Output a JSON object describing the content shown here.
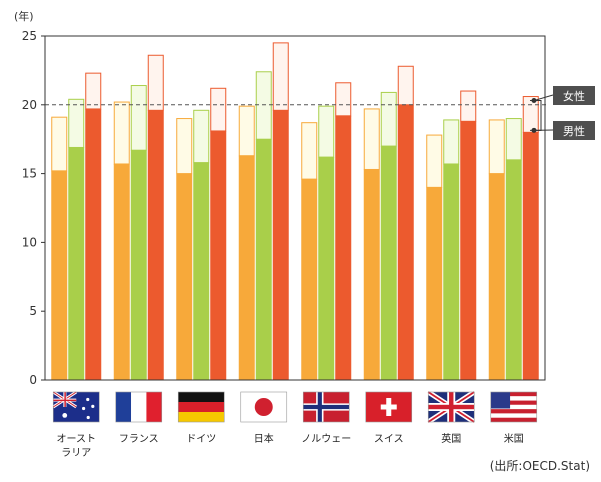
{
  "chart_data": {
    "type": "bar",
    "unit_label": "(年)",
    "ylim": [
      0,
      25
    ],
    "yticks": [
      0,
      5,
      10,
      15,
      20,
      25
    ],
    "reference_line": 20,
    "categories": [
      {
        "label_lines": [
          "オースト",
          "ラリア"
        ],
        "flag": "australia-flag"
      },
      {
        "label_lines": [
          "フランス"
        ],
        "flag": "france-flag"
      },
      {
        "label_lines": [
          "ドイツ"
        ],
        "flag": "germany-flag"
      },
      {
        "label_lines": [
          "日本"
        ],
        "flag": "japan-flag"
      },
      {
        "label_lines": [
          "ノルウェー"
        ],
        "flag": "norway-flag"
      },
      {
        "label_lines": [
          "スイス"
        ],
        "flag": "switzerland-flag"
      },
      {
        "label_lines": [
          "英国"
        ],
        "flag": "uk-flag"
      },
      {
        "label_lines": [
          "米国"
        ],
        "flag": "usa-flag"
      }
    ],
    "series": [
      {
        "male": [
          15.2,
          15.7,
          15.0,
          16.3,
          14.6,
          15.3,
          14.0,
          15.0
        ],
        "female": [
          19.1,
          20.2,
          19.0,
          19.9,
          18.7,
          19.7,
          17.8,
          18.9
        ],
        "male_color": "#f7a93a",
        "female_color": "#fffbe6"
      },
      {
        "male": [
          16.9,
          16.7,
          15.8,
          17.5,
          16.2,
          17.0,
          15.7,
          16.0
        ],
        "female": [
          20.4,
          21.4,
          19.6,
          22.4,
          19.9,
          20.9,
          18.9,
          19.0
        ],
        "male_color": "#a9cf4a",
        "female_color": "#f4fbe4"
      },
      {
        "male": [
          19.7,
          19.6,
          18.1,
          19.6,
          19.2,
          20.0,
          18.8,
          18.0
        ],
        "female": [
          22.3,
          23.6,
          21.2,
          24.5,
          21.6,
          22.8,
          21.0,
          20.6
        ],
        "male_color": "#ec5a2e",
        "female_color": "#fff4ee"
      }
    ],
    "legend": {
      "female": "女性",
      "male": "男性"
    },
    "source": "(出所:OECD.Stat)"
  }
}
